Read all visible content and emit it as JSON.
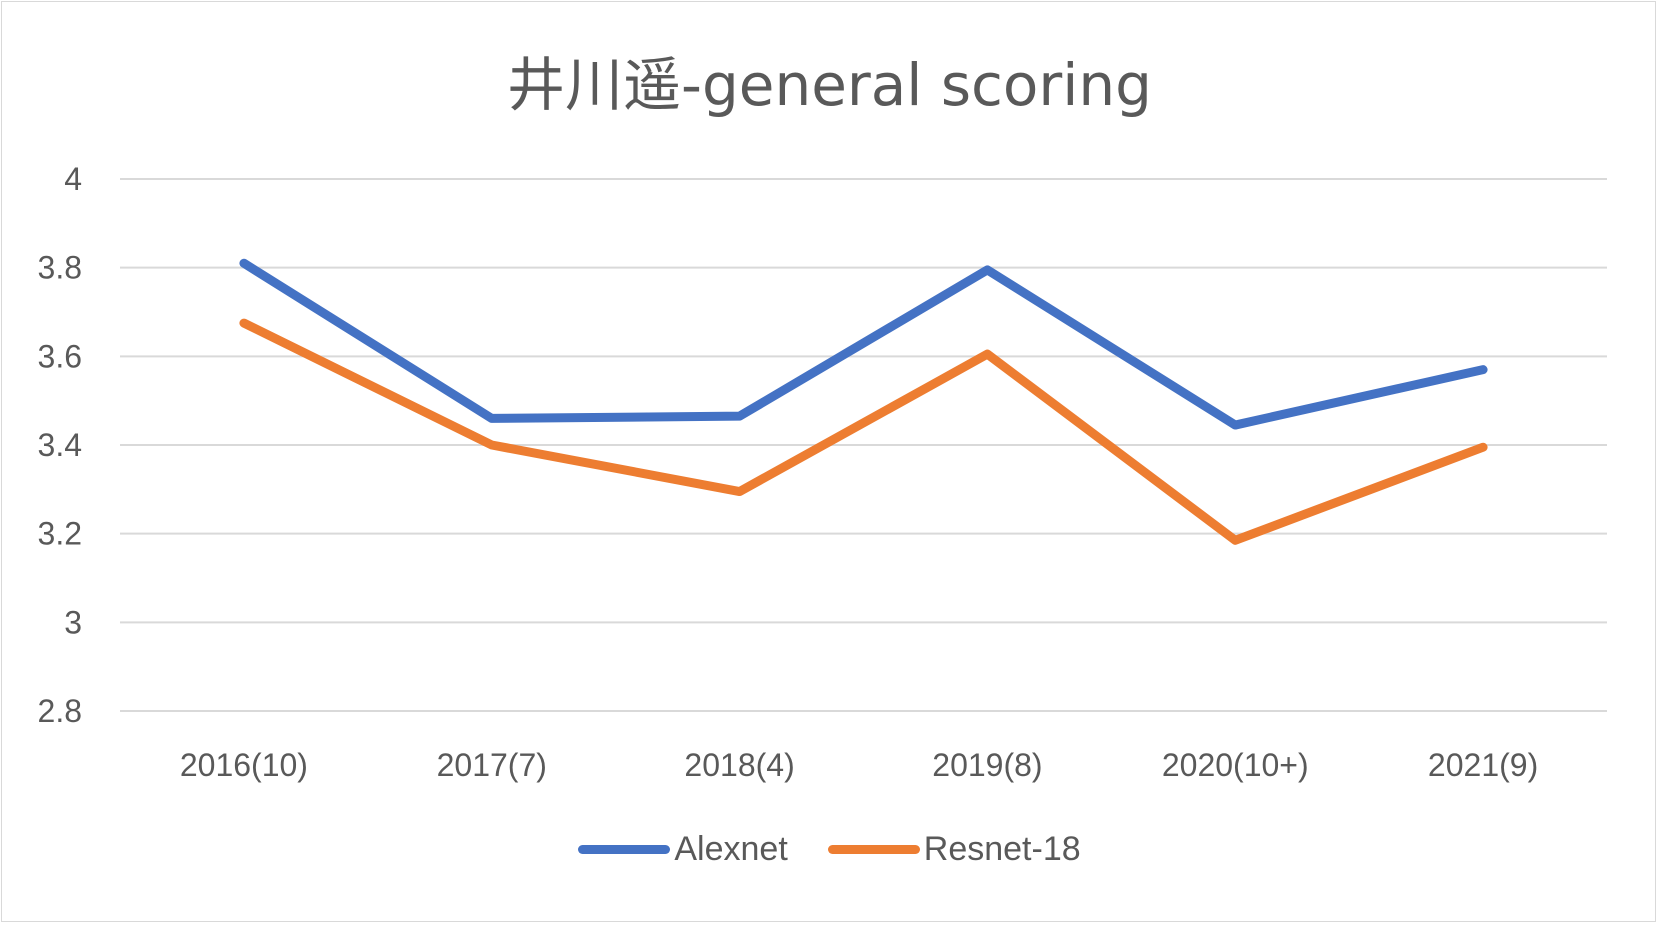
{
  "chart_data": {
    "type": "line",
    "title": "井川遥-general scoring",
    "categories": [
      "2016(10)",
      "2017(7)",
      "2018(4)",
      "2019(8)",
      "2020(10+)",
      "2021(9)"
    ],
    "ylim": [
      2.8,
      4
    ],
    "yticks": [
      "4",
      "3.8",
      "3.6",
      "3.4",
      "3.2",
      "3",
      "2.8"
    ],
    "ytick_values": [
      4,
      3.8,
      3.6,
      3.4,
      3.2,
      3,
      2.8
    ],
    "grid": true,
    "legend_position": "bottom",
    "series": [
      {
        "name": "Alexnet",
        "color": "#4472C4",
        "values": [
          3.81,
          3.46,
          3.465,
          3.795,
          3.445,
          3.57
        ]
      },
      {
        "name": "Resnet-18",
        "color": "#ED7D31",
        "values": [
          3.675,
          3.4,
          3.295,
          3.605,
          3.185,
          3.395
        ]
      }
    ]
  }
}
